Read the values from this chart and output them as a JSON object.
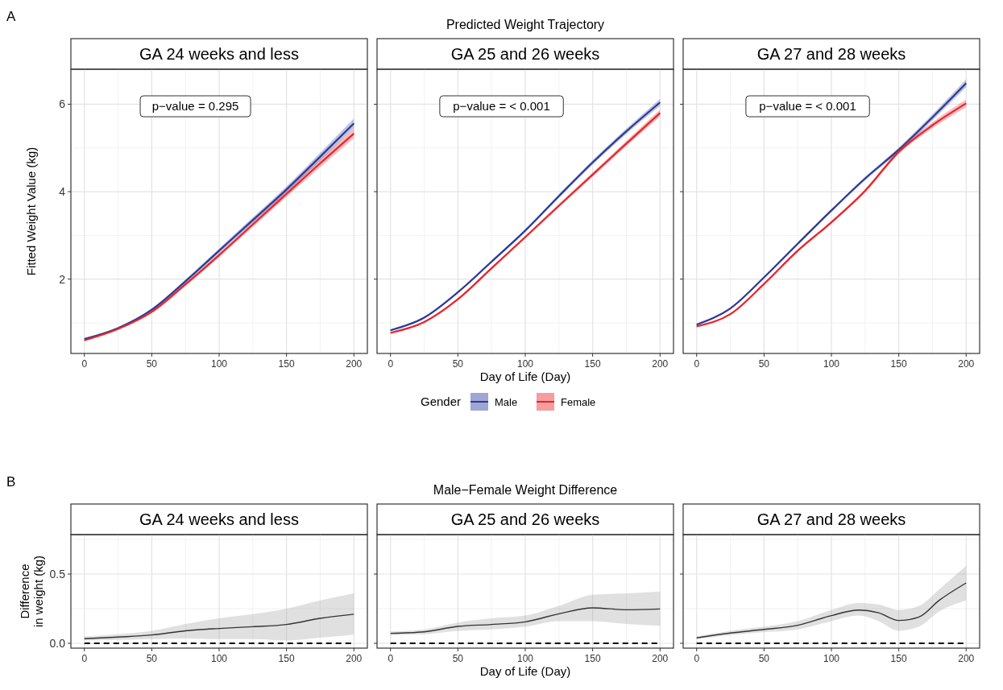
{
  "chart_data": [
    {
      "type": "line",
      "title": "GA 24 weeks and less",
      "ylabel": "Fitted Weight Value (kg)",
      "annotations": [
        "A",
        "Predicted Weight Trajectory",
        "p−value = 0.295"
      ],
      "xlim": [
        -10,
        210
      ],
      "ylim": [
        0.3,
        6.8
      ],
      "xticks": [
        0,
        50,
        100,
        150,
        200
      ],
      "yticks": [
        2,
        4,
        6
      ],
      "grid": true,
      "x": [
        0,
        25,
        50,
        75,
        100,
        125,
        150,
        175,
        200
      ],
      "series": [
        {
          "color": "#2b3a98",
          "values": [
            0.63,
            0.88,
            1.3,
            1.95,
            2.65,
            3.35,
            4.05,
            4.8,
            5.56
          ],
          "lower": [
            0.61,
            0.86,
            1.27,
            1.91,
            2.6,
            3.29,
            3.98,
            4.71,
            5.45
          ],
          "upper": [
            0.65,
            0.9,
            1.33,
            1.99,
            2.7,
            3.41,
            4.12,
            4.89,
            5.67
          ]
        },
        {
          "color": "#e8252a",
          "values": [
            0.6,
            0.86,
            1.25,
            1.88,
            2.55,
            3.25,
            3.95,
            4.65,
            5.33
          ],
          "lower": [
            0.58,
            0.84,
            1.22,
            1.84,
            2.5,
            3.19,
            3.88,
            4.56,
            5.22
          ],
          "upper": [
            0.62,
            0.88,
            1.28,
            1.92,
            2.6,
            3.31,
            4.02,
            4.74,
            5.44
          ]
        }
      ]
    },
    {
      "type": "line",
      "title": "GA 25 and 26 weeks",
      "xlabel": "Day of Life (Day)",
      "annotations": [
        "p−value = < 0.001"
      ],
      "legend": "bottom",
      "legend_title": "Gender",
      "tick_labels": "x",
      "xlim": [
        -10,
        210
      ],
      "ylim": [
        0.3,
        6.8
      ],
      "xticks": [
        0,
        50,
        100,
        150,
        200
      ],
      "yticks": [
        2,
        4,
        6
      ],
      "grid": true,
      "x": [
        0,
        25,
        50,
        75,
        100,
        125,
        150,
        175,
        200
      ],
      "series": [
        {
          "name": "Male",
          "color": "#2b3a98",
          "values": [
            0.83,
            1.12,
            1.7,
            2.4,
            3.11,
            3.9,
            4.67,
            5.38,
            6.04
          ],
          "lower": [
            0.81,
            1.1,
            1.68,
            2.37,
            3.08,
            3.86,
            4.62,
            5.32,
            5.96
          ],
          "upper": [
            0.85,
            1.14,
            1.72,
            2.43,
            3.14,
            3.94,
            4.72,
            5.44,
            6.12
          ]
        },
        {
          "name": "Female",
          "color": "#e8252a",
          "values": [
            0.77,
            1.02,
            1.54,
            2.25,
            2.96,
            3.68,
            4.39,
            5.1,
            5.8
          ],
          "lower": [
            0.75,
            1.0,
            1.52,
            2.22,
            2.93,
            3.64,
            4.34,
            5.04,
            5.72
          ],
          "upper": [
            0.79,
            1.04,
            1.56,
            2.28,
            2.99,
            3.72,
            4.44,
            5.16,
            5.88
          ]
        }
      ]
    },
    {
      "type": "line",
      "title": "GA 27 and 28 weeks",
      "annotations": [
        "p−value = < 0.001"
      ],
      "tick_labels": "x",
      "xlim": [
        -10,
        210
      ],
      "ylim": [
        0.3,
        6.8
      ],
      "xticks": [
        0,
        50,
        100,
        150,
        200
      ],
      "yticks": [
        2,
        4,
        6
      ],
      "grid": true,
      "x": [
        0,
        25,
        50,
        75,
        100,
        125,
        150,
        175,
        200
      ],
      "series": [
        {
          "color": "#2b3a98",
          "values": [
            0.96,
            1.33,
            2.04,
            2.81,
            3.57,
            4.3,
            4.96,
            5.7,
            6.48
          ],
          "lower": [
            0.94,
            1.31,
            2.02,
            2.78,
            3.54,
            4.26,
            4.91,
            5.63,
            6.39
          ],
          "upper": [
            0.98,
            1.35,
            2.06,
            2.84,
            3.6,
            4.34,
            5.01,
            5.77,
            6.57
          ]
        },
        {
          "color": "#e8252a",
          "values": [
            0.92,
            1.2,
            1.89,
            2.65,
            3.3,
            4.02,
            4.91,
            5.52,
            6.02
          ],
          "lower": [
            0.9,
            1.18,
            1.87,
            2.62,
            3.27,
            3.98,
            4.86,
            5.45,
            5.93
          ],
          "upper": [
            0.94,
            1.22,
            1.91,
            2.68,
            3.33,
            4.06,
            4.96,
            5.59,
            6.11
          ]
        }
      ]
    },
    {
      "type": "line",
      "title": "GA 24 weeks and less",
      "ylabel": "Difference\nin weight (kg)",
      "annotations": [
        "B",
        "Male−Female Weight Difference"
      ],
      "xlim": [
        -10,
        210
      ],
      "ylim": [
        -0.035,
        0.785
      ],
      "xticks": [
        0,
        50,
        100,
        150,
        200
      ],
      "yticks": [
        {
          "value": 0,
          "label": "0.0"
        },
        {
          "value": 0.5,
          "label": "0.5"
        }
      ],
      "grid": true,
      "ref_lines": [
        {
          "axis": "y",
          "value": 0,
          "color": "#000000",
          "line_style": "dashed"
        }
      ],
      "x": [
        0,
        25,
        50,
        75,
        100,
        125,
        150,
        175,
        200
      ],
      "series": [
        {
          "color": "#333333",
          "values": [
            0.033,
            0.045,
            0.06,
            0.09,
            0.107,
            0.12,
            0.136,
            0.18,
            0.21
          ],
          "lower": [
            0.02,
            0.025,
            0.03,
            0.035,
            0.03,
            0.03,
            0.02,
            0.04,
            0.062
          ],
          "upper": [
            0.05,
            0.065,
            0.09,
            0.14,
            0.18,
            0.21,
            0.25,
            0.31,
            0.36
          ]
        }
      ]
    },
    {
      "type": "line",
      "title": "GA 25 and 26 weeks",
      "xlabel": "Day of Life (Day)",
      "tick_labels": "x",
      "xlim": [
        -10,
        210
      ],
      "ylim": [
        -0.035,
        0.785
      ],
      "xticks": [
        0,
        50,
        100,
        150,
        200
      ],
      "yticks": [
        0,
        0.5
      ],
      "grid": true,
      "ref_lines": [
        {
          "axis": "y",
          "value": 0,
          "color": "#000000",
          "line_style": "dashed"
        }
      ],
      "x": [
        0,
        25,
        50,
        75,
        100,
        125,
        150,
        175,
        200
      ],
      "series": [
        {
          "color": "#333333",
          "values": [
            0.072,
            0.083,
            0.122,
            0.136,
            0.155,
            0.213,
            0.256,
            0.242,
            0.248
          ],
          "lower": [
            0.06,
            0.065,
            0.09,
            0.1,
            0.12,
            0.16,
            0.16,
            0.14,
            0.126
          ],
          "upper": [
            0.085,
            0.1,
            0.15,
            0.18,
            0.2,
            0.27,
            0.35,
            0.36,
            0.374
          ]
        }
      ]
    },
    {
      "type": "line",
      "title": "GA 27 and 28 weeks",
      "tick_labels": "x",
      "xlim": [
        -10,
        210
      ],
      "ylim": [
        -0.035,
        0.785
      ],
      "xticks": [
        0,
        50,
        100,
        150,
        200
      ],
      "yticks": [
        0,
        0.5
      ],
      "grid": true,
      "ref_lines": [
        {
          "axis": "y",
          "value": 0,
          "color": "#000000",
          "line_style": "dashed"
        }
      ],
      "x": [
        0,
        25,
        50,
        75,
        100,
        120,
        135,
        150,
        165,
        180,
        200
      ],
      "series": [
        {
          "color": "#333333",
          "values": [
            0.039,
            0.074,
            0.1,
            0.13,
            0.2,
            0.24,
            0.22,
            0.165,
            0.19,
            0.31,
            0.436
          ],
          "lower": [
            0.03,
            0.06,
            0.08,
            0.1,
            0.16,
            0.2,
            0.16,
            0.09,
            0.12,
            0.23,
            0.31
          ],
          "upper": [
            0.05,
            0.09,
            0.12,
            0.16,
            0.24,
            0.29,
            0.28,
            0.24,
            0.27,
            0.39,
            0.56
          ]
        }
      ]
    }
  ]
}
